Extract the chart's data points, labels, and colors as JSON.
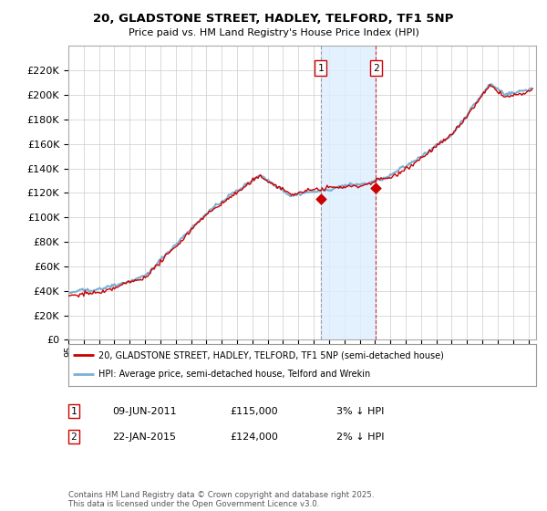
{
  "title_line1": "20, GLADSTONE STREET, HADLEY, TELFORD, TF1 5NP",
  "title_line2": "Price paid vs. HM Land Registry's House Price Index (HPI)",
  "ylim": [
    0,
    240000
  ],
  "yticks": [
    0,
    20000,
    40000,
    60000,
    80000,
    100000,
    120000,
    140000,
    160000,
    180000,
    200000,
    220000
  ],
  "sale1_date": "09-JUN-2011",
  "sale1_price": 115000,
  "sale1_t": 2011.458,
  "sale1_label": "1",
  "sale1_pct": "3%",
  "sale2_date": "22-JAN-2015",
  "sale2_price": 124000,
  "sale2_t": 2015.055,
  "sale2_label": "2",
  "sale2_pct": "2%",
  "legend_line1": "20, GLADSTONE STREET, HADLEY, TELFORD, TF1 5NP (semi-detached house)",
  "legend_line2": "HPI: Average price, semi-detached house, Telford and Wrekin",
  "footer": "Contains HM Land Registry data © Crown copyright and database right 2025.\nThis data is licensed under the Open Government Licence v3.0.",
  "price_color": "#cc0000",
  "hpi_color": "#7ab0d4",
  "bg_color": "#ffffff",
  "grid_color": "#cccccc",
  "shade_color": "#ddeeff",
  "sale1_vline_color": "#888888",
  "sale2_vline_color": "#cc0000",
  "annotation_box_color": "#cc0000",
  "xlim_start": 1995,
  "xlim_end": 2025.5
}
